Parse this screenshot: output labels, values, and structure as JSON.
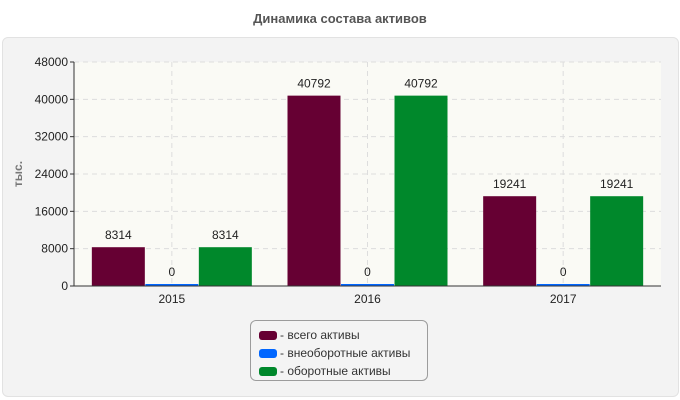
{
  "title": "Динамика состава активов",
  "chart_data": {
    "type": "bar",
    "title": "Динамика состава активов",
    "xlabel": "",
    "ylabel": "тыс.",
    "categories": [
      "2015",
      "2016",
      "2017"
    ],
    "series": [
      {
        "name": "- всего активы",
        "values": [
          8314,
          40792,
          19241
        ],
        "color": "#660033"
      },
      {
        "name": "- внеоборотные активы",
        "values": [
          0,
          0,
          0
        ],
        "color": "#0066ff"
      },
      {
        "name": "- оборотные активы",
        "values": [
          8314,
          40792,
          19241
        ],
        "color": "#00882b"
      }
    ],
    "ylim": [
      0,
      48000
    ],
    "yticks": [
      0,
      8000,
      16000,
      24000,
      32000,
      40000,
      48000
    ],
    "grid": true,
    "legend_position": "bottom"
  }
}
